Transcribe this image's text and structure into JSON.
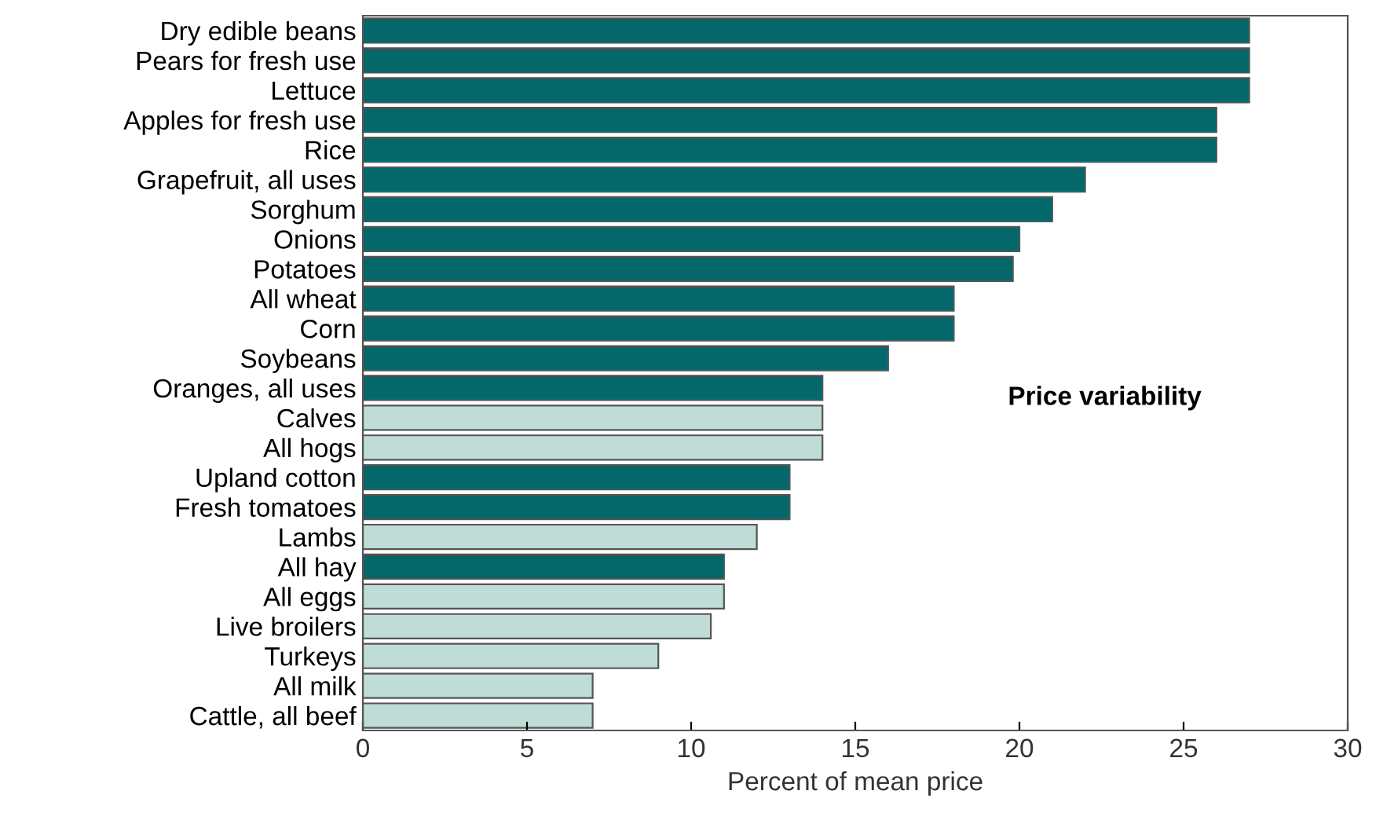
{
  "chart_data": {
    "type": "bar",
    "orientation": "horizontal",
    "xlabel": "Percent of mean price",
    "annotations": [
      "Price variability"
    ],
    "categories": [
      "Dry edible beans",
      "Pears for fresh use",
      "Lettuce",
      "Apples for fresh use",
      "Rice",
      "Grapefruit, all uses",
      "Sorghum",
      "Onions",
      "Potatoes",
      "All wheat",
      "Corn",
      "Soybeans",
      "Oranges, all uses",
      "Calves",
      "All hogs",
      "Upland cotton",
      "Fresh tomatoes",
      "Lambs",
      "All hay",
      "All eggs",
      "Live broilers",
      "Turkeys",
      "All milk",
      "Cattle, all beef"
    ],
    "values": [
      27,
      27,
      27,
      26,
      26,
      22,
      21,
      20,
      19.8,
      18,
      18,
      16,
      14,
      14,
      14,
      13,
      13,
      12,
      11,
      11,
      10.6,
      9,
      7,
      7
    ],
    "colors": [
      "#04676a",
      "#04676a",
      "#04676a",
      "#04676a",
      "#04676a",
      "#04676a",
      "#04676a",
      "#04676a",
      "#04676a",
      "#04676a",
      "#04676a",
      "#04676a",
      "#04676a",
      "#bfddd6",
      "#bfddd6",
      "#04676a",
      "#04676a",
      "#bfddd6",
      "#04676a",
      "#bfddd6",
      "#bfddd6",
      "#bfddd6",
      "#bfddd6",
      "#bfddd6"
    ],
    "xlim": [
      0,
      30
    ],
    "xticks": [
      0,
      5,
      10,
      15,
      20,
      25,
      30
    ],
    "grid": false,
    "legend": false
  }
}
